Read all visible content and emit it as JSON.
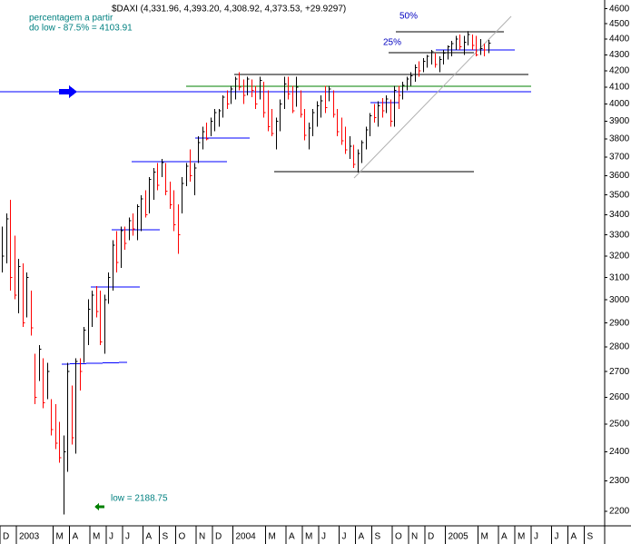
{
  "chart_data": {
    "type": "hlc",
    "title": "$DAXI (4,331.96, 4,393.20, 4,308.92, 4,373.53, +29.9297)",
    "annotations": [
      "percentagem a partir",
      "do low  - 87.5% = 4103.91",
      "50%",
      "25%",
      "low = 2188.75"
    ],
    "log_scale": true,
    "up_color": "#000000",
    "down_color": "#ff0000",
    "ylim": [
      2150,
      4660
    ],
    "yticks": [
      2200,
      2300,
      2400,
      2500,
      2600,
      2700,
      2800,
      2900,
      3000,
      3100,
      3200,
      3300,
      3400,
      3500,
      3600,
      3700,
      3800,
      3900,
      4000,
      4100,
      4200,
      4300,
      4400,
      4500,
      4600
    ],
    "categories": [
      "D",
      null,
      null,
      null,
      "2003",
      null,
      null,
      null,
      null,
      null,
      null,
      null,
      null,
      "M",
      null,
      null,
      null,
      "A",
      null,
      null,
      null,
      null,
      "M",
      null,
      null,
      null,
      "J",
      null,
      null,
      null,
      "J",
      null,
      null,
      null,
      null,
      "A",
      null,
      null,
      null,
      "S",
      null,
      null,
      null,
      "O",
      null,
      null,
      null,
      null,
      "N",
      null,
      null,
      null,
      "D",
      null,
      null,
      null,
      null,
      "2004",
      null,
      null,
      null,
      null,
      null,
      null,
      null,
      "M",
      null,
      null,
      null,
      null,
      "A",
      null,
      null,
      null,
      "M",
      null,
      null,
      null,
      "J",
      null,
      null,
      null,
      null,
      "J",
      null,
      null,
      null,
      "A",
      null,
      null,
      null,
      "S",
      null,
      null,
      null,
      null,
      "O",
      null,
      null,
      null,
      "N",
      null,
      null,
      null,
      "D",
      null,
      null,
      null,
      null,
      "2005",
      null,
      null,
      null,
      null,
      null,
      null,
      null,
      "M",
      null,
      null,
      null,
      null,
      "A",
      null,
      null,
      null,
      "M",
      null,
      null,
      null,
      "J",
      null,
      null,
      null,
      null,
      "J",
      null,
      null,
      null,
      "A",
      null,
      null,
      null,
      "S",
      null,
      null,
      null,
      null
    ],
    "high": [
      3340,
      3407,
      3476,
      3296,
      3187,
      3166,
      3124,
      3042,
      2771,
      2808,
      2753,
      2735,
      2593,
      2575,
      2508,
      2458,
      2735,
      2645,
      2753,
      2753,
      2884,
      3002,
      3042,
      3062,
      3042,
      3022,
      3124,
      3274,
      3318,
      3340,
      3340,
      3385,
      3407,
      3453,
      3499,
      3523,
      3594,
      3642,
      3667,
      3691,
      3667,
      3570,
      3523,
      3453,
      3594,
      3667,
      3741,
      3667,
      3816,
      3868,
      3893,
      3920,
      3972,
      3972,
      4052,
      4080,
      4107,
      4162,
      4190,
      4148,
      4162,
      4148,
      4107,
      4162,
      4134,
      4080,
      3972,
      3920,
      4026,
      4162,
      4162,
      4107,
      4162,
      4080,
      3972,
      3893,
      3972,
      4015,
      4052,
      4107,
      4107,
      4080,
      3972,
      3920,
      3868,
      3816,
      3766,
      3741,
      3791,
      3868,
      3946,
      3999,
      4015,
      4036,
      4052,
      4026,
      4107,
      4107,
      4134,
      4162,
      4190,
      4240,
      4260,
      4280,
      4300,
      4330,
      4310,
      4290,
      4330,
      4360,
      4390,
      4420,
      4430,
      4420,
      4450,
      4430,
      4420,
      4400,
      4370,
      4393.2,
      null,
      null,
      null,
      null,
      null,
      null,
      null,
      null,
      null,
      null,
      null,
      null,
      null,
      null,
      null,
      null,
      null,
      null,
      null,
      null,
      null,
      null,
      null,
      null,
      null,
      null,
      null,
      null
    ],
    "low": [
      3124,
      3166,
      3042,
      3002,
      2942,
      2884,
      2923,
      2846,
      2575,
      2663,
      2558,
      2593,
      2458,
      2410,
      2362,
      2188.75,
      2331,
      2426,
      2393,
      2627,
      2735,
      2808,
      2884,
      2923,
      2808,
      2771,
      2982,
      3042,
      3124,
      3145,
      3230,
      3274,
      3296,
      3274,
      3318,
      3385,
      3407,
      3476,
      3523,
      3594,
      3499,
      3430,
      3318,
      3209,
      3407,
      3546,
      3570,
      3499,
      3667,
      3741,
      3791,
      3816,
      3842,
      3868,
      3920,
      3972,
      3999,
      4026,
      4080,
      3999,
      4052,
      4040,
      3972,
      4026,
      3920,
      3842,
      3816,
      3741,
      3842,
      3972,
      4026,
      3946,
      3983,
      3920,
      3791,
      3741,
      3816,
      3868,
      3920,
      3946,
      4015,
      3920,
      3816,
      3766,
      3716,
      3691,
      3642,
      3618,
      3667,
      3741,
      3816,
      3893,
      3868,
      3920,
      3946,
      3868,
      3868,
      3972,
      4026,
      4080,
      4107,
      4134,
      4162,
      4190,
      4220,
      4240,
      4220,
      4190,
      4240,
      4270,
      4290,
      4330,
      4330,
      4300,
      4360,
      4330,
      4290,
      4300,
      4290,
      4308.92,
      null,
      null,
      null,
      null,
      null,
      null,
      null,
      null,
      null,
      null,
      null,
      null,
      null,
      null,
      null,
      null,
      null,
      null,
      null,
      null,
      null,
      null,
      null,
      null,
      null,
      null,
      null,
      null
    ],
    "close": [
      3200,
      3380,
      3100,
      3020,
      3150,
      2900,
      3100,
      2880,
      2600,
      2790,
      2580,
      2700,
      2480,
      2430,
      2380,
      2400,
      2700,
      2450,
      2740,
      2700,
      2870,
      2960,
      3020,
      2950,
      2820,
      3000,
      3100,
      3250,
      3170,
      3320,
      3260,
      3370,
      3330,
      3440,
      3480,
      3400,
      3580,
      3620,
      3550,
      3670,
      3520,
      3450,
      3350,
      3300,
      3560,
      3650,
      3600,
      3640,
      3780,
      3840,
      3800,
      3900,
      3950,
      3960,
      4040,
      4000,
      4090,
      4150,
      4100,
      4050,
      4150,
      4080,
      4000,
      4140,
      3950,
      3870,
      3830,
      3900,
      4000,
      4120,
      4060,
      3960,
      4100,
      3940,
      3820,
      3860,
      3950,
      3990,
      4020,
      3980,
      4090,
      3940,
      3840,
      3790,
      3740,
      3760,
      3660,
      3720,
      3780,
      3850,
      3930,
      3920,
      3990,
      3960,
      4030,
      3900,
      4080,
      4050,
      4110,
      4150,
      4170,
      4220,
      4200,
      4260,
      4290,
      4320,
      4240,
      4270,
      4310,
      4350,
      4370,
      4400,
      4350,
      4380,
      4430,
      4360,
      4300,
      4340,
      4330,
      4373.53,
      null,
      null,
      null,
      null,
      null,
      null,
      null,
      null,
      null,
      null,
      null,
      null,
      null,
      null,
      null,
      null,
      null,
      null,
      null,
      null,
      null,
      null,
      null,
      null,
      null,
      null,
      null,
      null
    ]
  }
}
